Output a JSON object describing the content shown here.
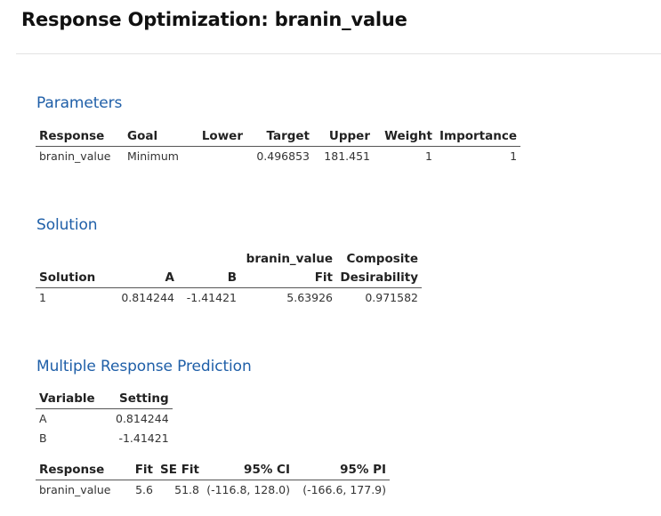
{
  "title": "Response Optimization: branin_value",
  "parameters": {
    "heading": "Parameters",
    "columns": [
      "Response",
      "Goal",
      "Lower",
      "Target",
      "Upper",
      "Weight",
      "Importance"
    ],
    "rows": [
      [
        "branin_value",
        "Minimum",
        "",
        "0.496853",
        "181.451",
        "1",
        "1"
      ]
    ]
  },
  "solution": {
    "heading": "Solution",
    "header_top": [
      "",
      "",
      "",
      "branin_value",
      "Composite"
    ],
    "header_bottom": [
      "Solution",
      "A",
      "B",
      "Fit",
      "Desirability"
    ],
    "rows": [
      [
        "1",
        "0.814244",
        "-1.41421",
        "5.63926",
        "0.971582"
      ]
    ]
  },
  "prediction": {
    "heading": "Multiple Response Prediction",
    "settings": {
      "columns": [
        "Variable",
        "Setting"
      ],
      "rows": [
        [
          "A",
          "0.814244"
        ],
        [
          "B",
          "-1.41421"
        ]
      ]
    },
    "results": {
      "columns": [
        "Response",
        "Fit",
        "SE Fit",
        "95% CI",
        "95% PI"
      ],
      "rows": [
        [
          "branin_value",
          "5.6",
          "51.8",
          "(-116.8, 128.0)",
          "(-166.6, 177.9)"
        ]
      ]
    }
  }
}
